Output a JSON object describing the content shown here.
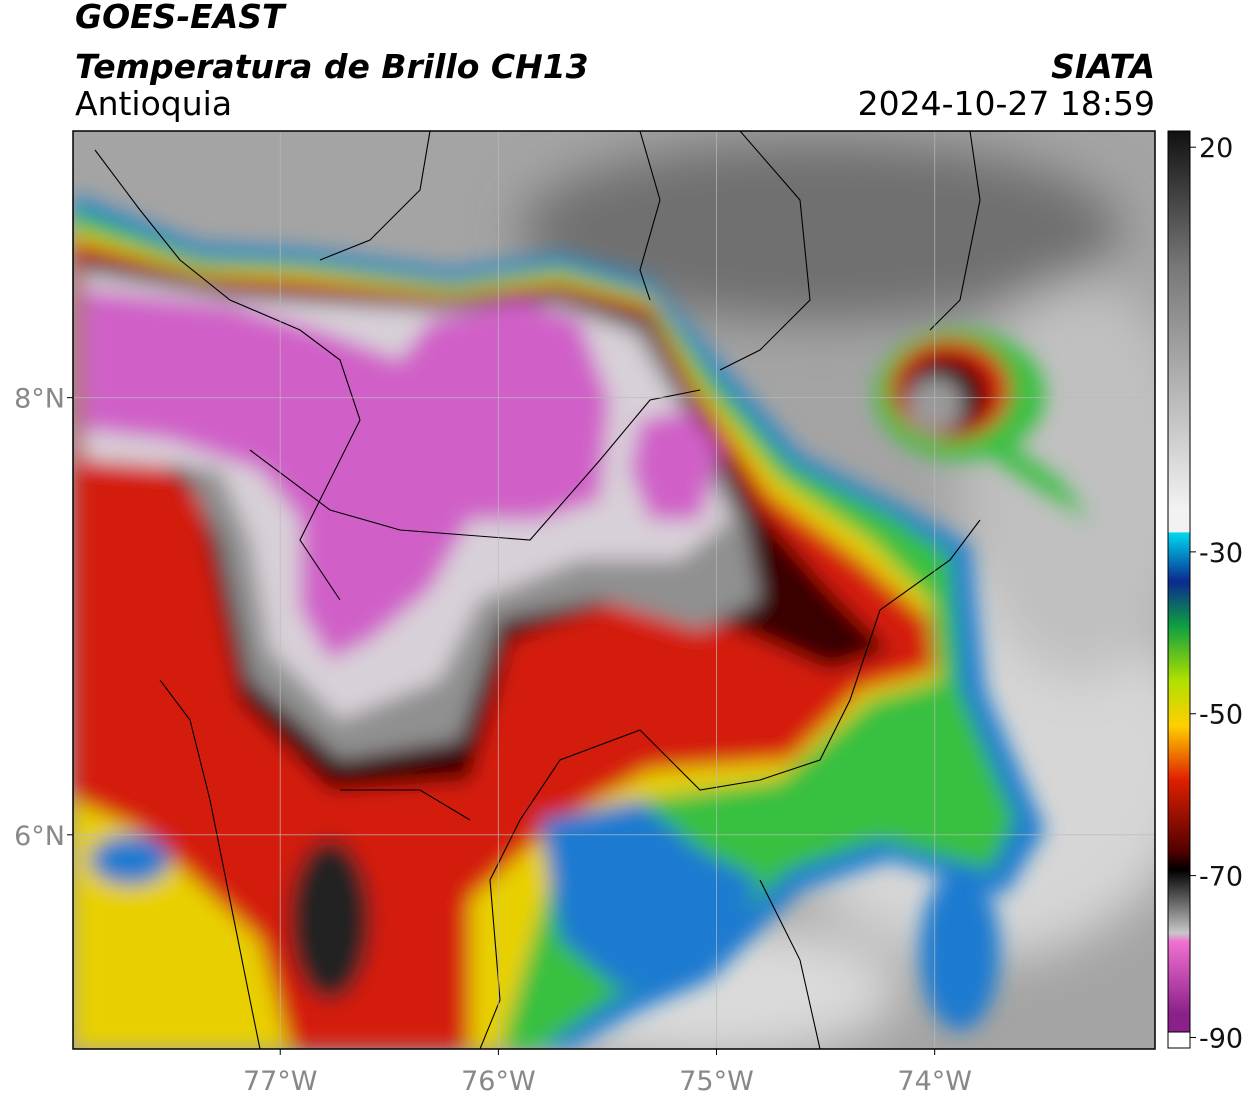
{
  "header": {
    "title": "GOES-EAST",
    "subtitle": "Temperatura de Brillo CH13",
    "region": "Antioquia",
    "source": "SIATA",
    "datetime": "2024-10-27 18:59"
  },
  "map": {
    "lonlim": [
      -77.95,
      -72.99
    ],
    "latlim": [
      5.02,
      9.22
    ],
    "lonticks": [
      {
        "value": -77,
        "label": "77°W"
      },
      {
        "value": -76,
        "label": "76°W"
      },
      {
        "value": -75,
        "label": "75°W"
      },
      {
        "value": -74,
        "label": "74°W"
      }
    ],
    "latticks": [
      {
        "value": 8,
        "label": "8°N"
      },
      {
        "value": 6,
        "label": "6°N"
      }
    ],
    "grid": true
  },
  "colorbar": {
    "lim": [
      -91.3,
      22
    ],
    "ticks": [
      20,
      -30,
      -50,
      -70,
      -90
    ]
  }
}
